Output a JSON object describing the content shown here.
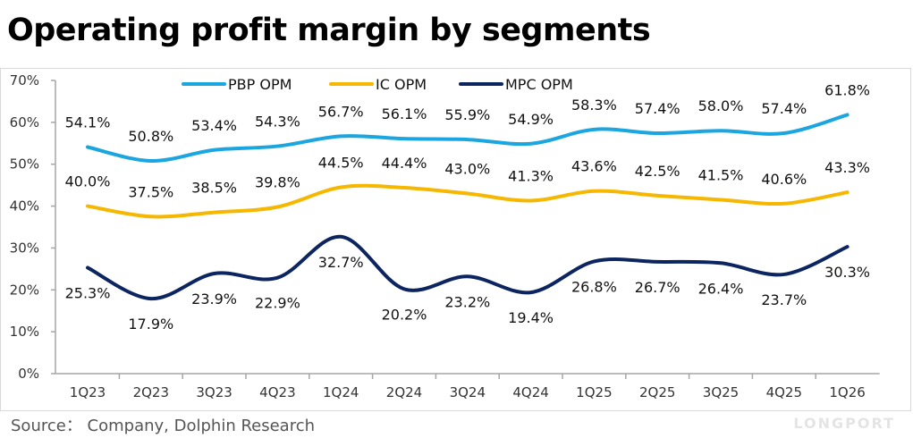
{
  "title": "Operating profit margin by segments",
  "source": "Source： Company, Dolphin Research",
  "watermark": "LONGPORT",
  "chart_data": {
    "type": "line",
    "categories": [
      "1Q23",
      "2Q23",
      "3Q23",
      "4Q23",
      "1Q24",
      "2Q24",
      "3Q24",
      "4Q24",
      "1Q25",
      "2Q25",
      "3Q25",
      "4Q25",
      "1Q26"
    ],
    "ylim": [
      0,
      70
    ],
    "yticks": [
      "0%",
      "10%",
      "20%",
      "30%",
      "40%",
      "50%",
      "60%",
      "70%"
    ],
    "grid": false,
    "legend_position": "top",
    "series": [
      {
        "name": "PBP OPM",
        "color": "#1BA6E0",
        "values": [
          54.1,
          50.8,
          53.4,
          54.3,
          56.7,
          56.1,
          55.9,
          54.9,
          58.3,
          57.4,
          58.0,
          57.4,
          61.8
        ],
        "labels": [
          "54.1%",
          "50.8%",
          "53.4%",
          "54.3%",
          "56.7%",
          "56.1%",
          "55.9%",
          "54.9%",
          "58.3%",
          "57.4%",
          "58.0%",
          "57.4%",
          "61.8%"
        ]
      },
      {
        "name": "IC OPM",
        "color": "#F5B700",
        "values": [
          40.0,
          37.5,
          38.5,
          39.8,
          44.5,
          44.4,
          43.0,
          41.3,
          43.6,
          42.5,
          41.5,
          40.6,
          43.3
        ],
        "labels": [
          "40.0%",
          "37.5%",
          "38.5%",
          "39.8%",
          "44.5%",
          "44.4%",
          "43.0%",
          "41.3%",
          "43.6%",
          "42.5%",
          "41.5%",
          "40.6%",
          "43.3%"
        ]
      },
      {
        "name": "MPC OPM",
        "color": "#0C2560",
        "values": [
          25.3,
          17.9,
          23.9,
          22.9,
          32.7,
          20.2,
          23.2,
          19.4,
          26.8,
          26.7,
          26.4,
          23.7,
          30.3
        ],
        "labels": [
          "25.3%",
          "17.9%",
          "23.9%",
          "22.9%",
          "32.7%",
          "20.2%",
          "23.2%",
          "19.4%",
          "26.8%",
          "26.7%",
          "26.4%",
          "23.7%",
          "30.3%"
        ]
      }
    ]
  }
}
